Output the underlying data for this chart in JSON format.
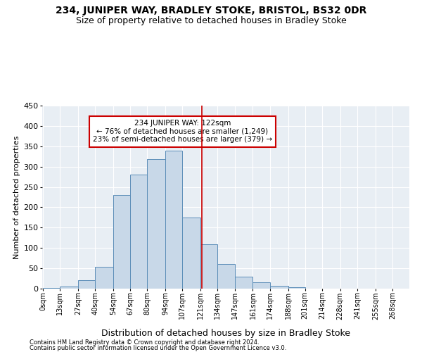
{
  "title": "234, JUNIPER WAY, BRADLEY STOKE, BRISTOL, BS32 0DR",
  "subtitle": "Size of property relative to detached houses in Bradley Stoke",
  "xlabel": "Distribution of detached houses by size in Bradley Stoke",
  "ylabel": "Number of detached properties",
  "footnote1": "Contains HM Land Registry data © Crown copyright and database right 2024.",
  "footnote2": "Contains public sector information licensed under the Open Government Licence v3.0.",
  "bin_edges": [
    0,
    13,
    27,
    40,
    54,
    67,
    80,
    94,
    107,
    121,
    134,
    147,
    161,
    174,
    188,
    201,
    214,
    228,
    241,
    255,
    268
  ],
  "counts": [
    2,
    6,
    20,
    54,
    230,
    280,
    318,
    340,
    175,
    109,
    60,
    30,
    16,
    7,
    3,
    0,
    0,
    0,
    0,
    0
  ],
  "bar_color": "#c8d8e8",
  "bar_edge_color": "#5b8db8",
  "vline_x": 122,
  "vline_color": "#cc0000",
  "annotation_text": "234 JUNIPER WAY: 122sqm\n← 76% of detached houses are smaller (1,249)\n23% of semi-detached houses are larger (379) →",
  "annotation_box_color": "#ffffff",
  "annotation_box_edge": "#cc0000",
  "ylim": [
    0,
    450
  ],
  "yticks": [
    0,
    50,
    100,
    150,
    200,
    250,
    300,
    350,
    400,
    450
  ],
  "bg_color": "#e8eef4",
  "title_fontsize": 10,
  "subtitle_fontsize": 9,
  "ylabel_fontsize": 8,
  "xlabel_fontsize": 9,
  "tick_label_fontsize": 7,
  "footnote_fontsize": 6
}
